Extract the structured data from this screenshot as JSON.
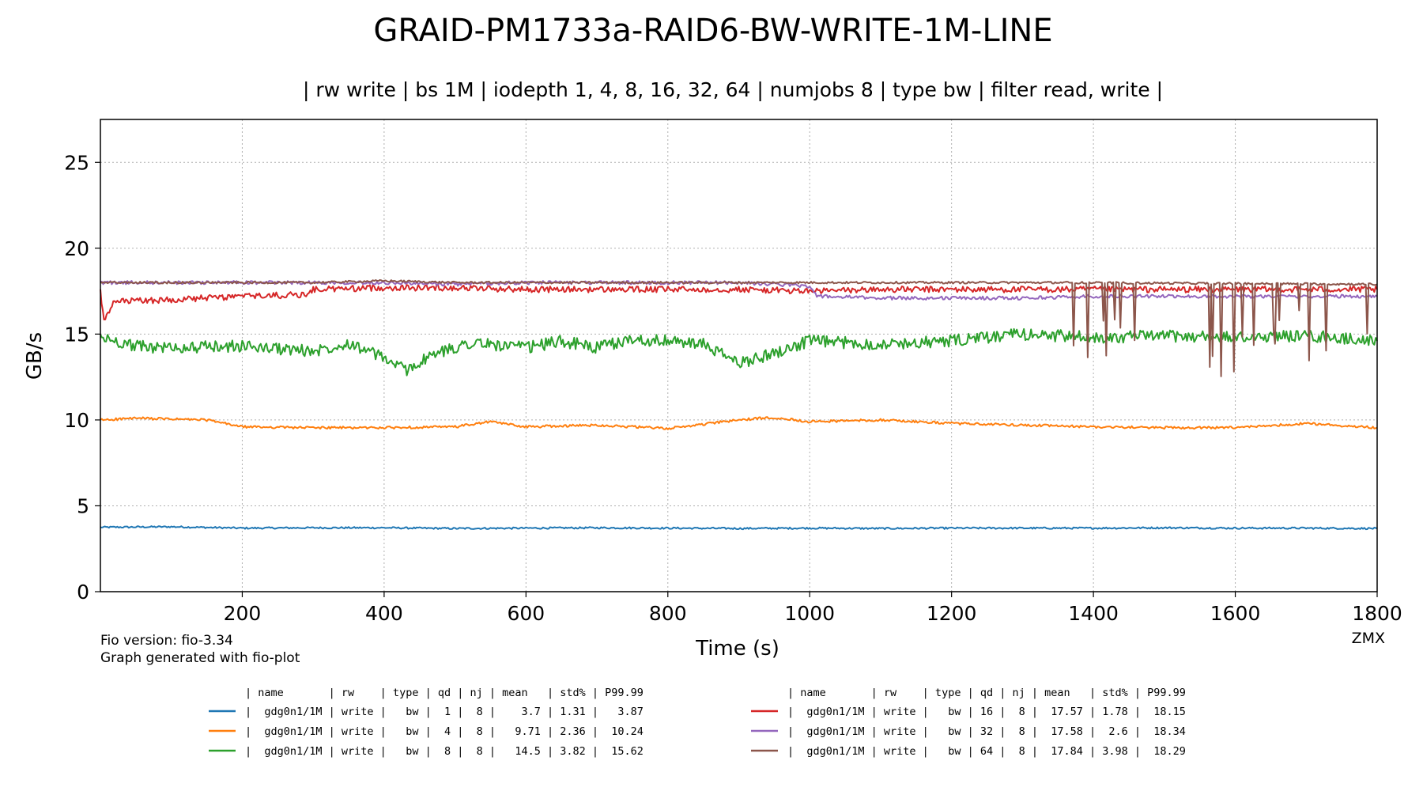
{
  "chart_data": {
    "type": "line",
    "title": "GRAID-PM1733a-RAID6-BW-WRITE-1M-LINE",
    "subtitle": "| rw write | bs 1M | iodepth 1, 4, 8, 16, 32, 64 | numjobs 8 | type bw | filter read, write |",
    "xlabel": "Time (s)",
    "ylabel": "GB/s",
    "xlim": [
      0,
      1800
    ],
    "ylim": [
      0,
      27.5
    ],
    "xticks": [
      200,
      400,
      600,
      800,
      1000,
      1200,
      1400,
      1600,
      1800
    ],
    "yticks": [
      0,
      5,
      10,
      15,
      20,
      25
    ],
    "grid": true,
    "legend_position": "bottom",
    "series": [
      {
        "name": "gdg0n1/1M",
        "rw": "write",
        "qd": 1,
        "nj": 8,
        "color": "#1f77b4",
        "x": [
          0,
          100,
          200,
          300,
          400,
          500,
          600,
          700,
          800,
          900,
          1000,
          1100,
          1200,
          1300,
          1400,
          1500,
          1600,
          1700,
          1800
        ],
        "values": [
          3.75,
          3.78,
          3.7,
          3.72,
          3.72,
          3.68,
          3.7,
          3.72,
          3.7,
          3.68,
          3.7,
          3.68,
          3.7,
          3.7,
          3.7,
          3.72,
          3.7,
          3.7,
          3.68
        ]
      },
      {
        "name": "gdg0n1/1M",
        "rw": "write",
        "qd": 4,
        "nj": 8,
        "color": "#ff7f0e",
        "x": [
          0,
          50,
          150,
          200,
          300,
          400,
          500,
          550,
          600,
          700,
          800,
          900,
          950,
          1000,
          1100,
          1200,
          1300,
          1400,
          1500,
          1600,
          1700,
          1800
        ],
        "values": [
          10.0,
          10.1,
          10.0,
          9.6,
          9.55,
          9.55,
          9.6,
          9.9,
          9.6,
          9.7,
          9.5,
          10.0,
          10.15,
          9.9,
          10.0,
          9.8,
          9.7,
          9.6,
          9.55,
          9.55,
          9.8,
          9.55
        ]
      },
      {
        "name": "gdg0n1/1M",
        "rw": "write",
        "qd": 8,
        "nj": 8,
        "color": "#2ca02c",
        "x": [
          0,
          50,
          100,
          200,
          300,
          350,
          400,
          430,
          470,
          520,
          600,
          650,
          700,
          750,
          800,
          850,
          900,
          950,
          1000,
          1100,
          1200,
          1300,
          1400,
          1500,
          1600,
          1700,
          1800
        ],
        "values": [
          14.8,
          14.3,
          14.2,
          14.3,
          14.0,
          14.5,
          13.6,
          12.9,
          13.8,
          14.5,
          14.2,
          14.6,
          14.2,
          14.7,
          14.6,
          14.4,
          13.3,
          13.9,
          14.6,
          14.4,
          14.6,
          15.0,
          14.8,
          14.9,
          14.8,
          14.9,
          14.6
        ]
      },
      {
        "name": "gdg0n1/1M",
        "rw": "write",
        "qd": 16,
        "nj": 8,
        "color": "#d62728",
        "x": [
          0,
          5,
          20,
          100,
          200,
          290,
          300,
          400,
          500,
          600,
          700,
          800,
          900,
          1000,
          1100,
          1200,
          1300,
          1400,
          1500,
          1600,
          1700,
          1800
        ],
        "values": [
          17.5,
          15.7,
          16.9,
          17.0,
          17.2,
          17.3,
          17.6,
          17.7,
          17.7,
          17.6,
          17.6,
          17.6,
          17.6,
          17.5,
          17.6,
          17.6,
          17.6,
          17.6,
          17.6,
          17.6,
          17.6,
          17.6
        ]
      },
      {
        "name": "gdg0n1/1M",
        "rw": "write",
        "qd": 32,
        "nj": 8,
        "color": "#9467bd",
        "x": [
          0,
          100,
          200,
          300,
          400,
          500,
          600,
          700,
          800,
          900,
          1000,
          1010,
          1100,
          1200,
          1300,
          1400,
          1500,
          1600,
          1700,
          1800
        ],
        "values": [
          18.0,
          18.0,
          18.0,
          18.0,
          18.0,
          17.9,
          18.0,
          18.0,
          18.0,
          18.0,
          17.8,
          17.2,
          17.1,
          17.1,
          17.1,
          17.2,
          17.2,
          17.2,
          17.2,
          17.2
        ]
      },
      {
        "name": "gdg0n1/1M",
        "rw": "write",
        "qd": 64,
        "nj": 8,
        "color": "#8c564b",
        "x": [
          0,
          100,
          200,
          300,
          400,
          500,
          600,
          700,
          800,
          900,
          1000,
          1100,
          1200,
          1300,
          1350,
          1800
        ],
        "values": [
          18.0,
          18.0,
          18.0,
          18.0,
          18.1,
          18.0,
          18.0,
          18.0,
          18.0,
          18.0,
          18.0,
          18.0,
          18.0,
          18.0,
          18.0,
          17.9
        ]
      }
    ],
    "legend_header": "| name       | rw    | type | qd | nj | mean   | std% | P99.99",
    "legend_rows": [
      "|  gdg0n1/1M | write |   bw |  1 |  8 |    3.7 | 1.31 |   3.87",
      "|  gdg0n1/1M | write |   bw |  4 |  8 |   9.71 | 2.36 |  10.24",
      "|  gdg0n1/1M | write |   bw |  8 |  8 |   14.5 | 3.82 |  15.62",
      "|  gdg0n1/1M | write |   bw | 16 |  8 |  17.57 | 1.78 |  18.15",
      "|  gdg0n1/1M | write |   bw | 32 |  8 |  17.58 |  2.6 |  18.34",
      "|  gdg0n1/1M | write |   bw | 64 |  8 |  17.84 | 3.98 |  18.29"
    ]
  },
  "footer": {
    "fio_version": "Fio version: fio-3.34",
    "generator": "Graph generated with fio-plot",
    "signature": "ZMX"
  }
}
